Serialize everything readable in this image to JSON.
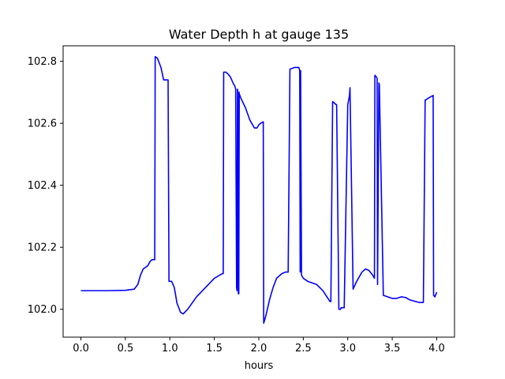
{
  "chart_data": {
    "type": "line",
    "title": "Water Depth h at gauge 135",
    "xlabel": "hours",
    "ylabel": "",
    "xlim": [
      -0.2,
      4.2
    ],
    "ylim": [
      101.91,
      102.85
    ],
    "grid": false,
    "xticks": [
      0.0,
      0.5,
      1.0,
      1.5,
      2.0,
      2.5,
      3.0,
      3.5,
      4.0
    ],
    "xtick_labels": [
      "0.0",
      "0.5",
      "1.0",
      "1.5",
      "2.0",
      "2.5",
      "3.0",
      "3.5",
      "4.0"
    ],
    "yticks": [
      102.0,
      102.2,
      102.4,
      102.6,
      102.8
    ],
    "ytick_labels": [
      "102.0",
      "102.2",
      "102.4",
      "102.6",
      "102.8"
    ],
    "series": [
      {
        "color": "#0000ff",
        "x": [
          0.0,
          0.3,
          0.5,
          0.6,
          0.64,
          0.67,
          0.7,
          0.75,
          0.78,
          0.8,
          0.83,
          0.835,
          0.86,
          0.9,
          0.93,
          0.98,
          0.99,
          1.02,
          1.05,
          1.08,
          1.12,
          1.15,
          1.2,
          1.3,
          1.4,
          1.5,
          1.56,
          1.59,
          1.6,
          1.605,
          1.63,
          1.65,
          1.68,
          1.71,
          1.73,
          1.74,
          1.75,
          1.755,
          1.76,
          1.765,
          1.77,
          1.775,
          1.78,
          1.78,
          1.8,
          1.85,
          1.9,
          1.95,
          1.98,
          2.0,
          2.02,
          2.05,
          2.055,
          2.06,
          2.08,
          2.12,
          2.16,
          2.2,
          2.26,
          2.3,
          2.33,
          2.35,
          2.355,
          2.4,
          2.45,
          2.46,
          2.465,
          2.47,
          2.48,
          2.5,
          2.55,
          2.65,
          2.72,
          2.8,
          2.81,
          2.83,
          2.87,
          2.875,
          2.9,
          2.92,
          2.925,
          2.96,
          3.0,
          3.02,
          3.025,
          3.06,
          3.1,
          3.16,
          3.2,
          3.24,
          3.28,
          3.29,
          3.3,
          3.305,
          3.32,
          3.33,
          3.335,
          3.35,
          3.355,
          3.4,
          3.45,
          3.5,
          3.55,
          3.6,
          3.65,
          3.7,
          3.8,
          3.85,
          3.87,
          3.875,
          3.9,
          3.96,
          3.965,
          3.98,
          4.0
        ],
        "values": [
          102.06,
          102.06,
          102.061,
          102.065,
          102.08,
          102.11,
          102.13,
          102.14,
          102.155,
          102.16,
          102.16,
          102.815,
          102.81,
          102.78,
          102.74,
          102.74,
          102.09,
          102.09,
          102.07,
          102.02,
          101.99,
          101.985,
          102.0,
          102.04,
          102.07,
          102.1,
          102.11,
          102.115,
          102.115,
          102.765,
          102.765,
          102.76,
          102.75,
          102.73,
          102.72,
          102.71,
          102.07,
          102.06,
          102.71,
          102.7,
          102.05,
          102.05,
          102.7,
          102.695,
          102.68,
          102.65,
          102.61,
          102.585,
          102.585,
          102.595,
          102.6,
          102.605,
          101.955,
          101.96,
          101.98,
          102.03,
          102.07,
          102.1,
          102.115,
          102.12,
          102.12,
          102.775,
          102.775,
          102.78,
          102.78,
          102.77,
          102.12,
          102.77,
          102.11,
          102.1,
          102.09,
          102.08,
          102.06,
          102.025,
          102.025,
          102.67,
          102.66,
          102.66,
          102.0,
          102.0,
          102.005,
          102.005,
          102.66,
          102.69,
          102.715,
          102.065,
          102.09,
          102.12,
          102.13,
          102.125,
          102.11,
          102.105,
          102.1,
          102.755,
          102.75,
          102.745,
          102.08,
          102.73,
          102.725,
          102.045,
          102.04,
          102.035,
          102.035,
          102.04,
          102.038,
          102.03,
          102.022,
          102.022,
          102.675,
          102.675,
          102.68,
          102.69,
          102.045,
          102.04,
          102.055
        ]
      }
    ]
  }
}
